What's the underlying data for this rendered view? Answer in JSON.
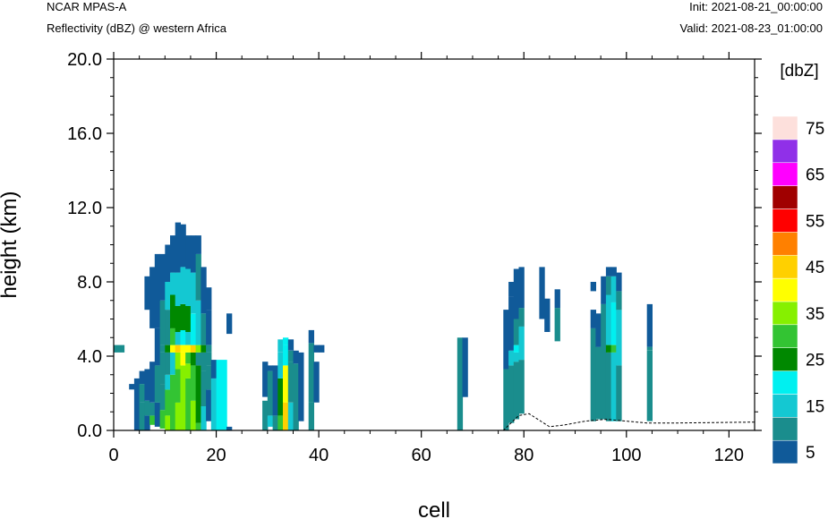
{
  "header": {
    "left_line1": "NCAR MPAS-A",
    "left_line2": "Reflectivity (dBZ) @ western Africa",
    "right_line1": "Init: 2021-08-21_00:00:00",
    "right_line2": "Valid: 2021-08-23_01:00:00"
  },
  "chart_data": {
    "type": "heatmap",
    "title": "Reflectivity (dBZ) @ western Africa",
    "xlabel": "cell",
    "ylabel": "height (km)",
    "xlim": [
      0,
      125
    ],
    "ylim": [
      0,
      20
    ],
    "x_ticks": [
      "0",
      "20",
      "40",
      "60",
      "80",
      "100",
      "120"
    ],
    "y_ticks": [
      "0.0",
      "4.0",
      "8.0",
      "12.0",
      "16.0",
      "20.0"
    ],
    "grid": false,
    "colorbar": {
      "title": "[dbZ]",
      "labels": [
        "5",
        "15",
        "25",
        "35",
        "45",
        "55",
        "65",
        "75"
      ],
      "levels": [
        5,
        10,
        15,
        20,
        25,
        30,
        35,
        40,
        45,
        50,
        55,
        60,
        65,
        70,
        75
      ],
      "colors": [
        "#105a99",
        "#1a8d8d",
        "#14c8d2",
        "#00f0f0",
        "#008800",
        "#33c433",
        "#86f000",
        "#ffff00",
        "#ffd000",
        "#ff8000",
        "#ff0000",
        "#a00000",
        "#ff00ff",
        "#9030e8",
        "#fde0dc"
      ]
    },
    "columns": [
      {
        "x": [
          0,
          2
        ],
        "segments": [
          [
            4.2,
            4.6,
            10
          ]
        ]
      },
      {
        "x": [
          3,
          4
        ],
        "segments": [
          [
            2.2,
            2.5,
            5
          ]
        ]
      },
      {
        "x": [
          4,
          5
        ],
        "segments": [
          [
            0,
            2.8,
            5
          ]
        ]
      },
      {
        "x": [
          5,
          6
        ],
        "segments": [
          [
            0,
            1.5,
            10
          ],
          [
            1.5,
            2.5,
            10
          ],
          [
            2.5,
            3.2,
            5
          ]
        ]
      },
      {
        "x": [
          6,
          7
        ],
        "segments": [
          [
            0,
            0.8,
            5
          ],
          [
            0.8,
            1.6,
            10
          ],
          [
            1.6,
            3.3,
            5
          ],
          [
            6.5,
            8.3,
            5
          ]
        ]
      },
      {
        "x": [
          7,
          8
        ],
        "segments": [
          [
            0.3,
            0.8,
            30
          ],
          [
            0.8,
            1.5,
            10
          ],
          [
            1.5,
            3.7,
            5
          ],
          [
            5.5,
            8.8,
            5
          ]
        ]
      },
      {
        "x": [
          8,
          9
        ],
        "segments": [
          [
            0.2,
            1.5,
            5
          ],
          [
            1.5,
            3.5,
            10
          ],
          [
            3.5,
            5.5,
            5
          ],
          [
            5.5,
            9.5,
            5
          ]
        ]
      },
      {
        "x": [
          9,
          10
        ],
        "segments": [
          [
            0.1,
            1.1,
            30
          ],
          [
            1.1,
            2.5,
            10
          ],
          [
            2.5,
            4.2,
            10
          ],
          [
            4.2,
            4.6,
            10
          ],
          [
            4.6,
            7,
            10
          ],
          [
            7,
            9.5,
            5
          ]
        ]
      },
      {
        "x": [
          10,
          11
        ],
        "segments": [
          [
            0,
            0.8,
            35
          ],
          [
            0.8,
            2.2,
            30
          ],
          [
            2.2,
            3,
            15
          ],
          [
            3,
            4.2,
            10
          ],
          [
            4.2,
            4.6,
            25
          ],
          [
            4.6,
            6.5,
            10
          ],
          [
            6.5,
            8,
            15
          ],
          [
            8,
            10,
            5
          ]
        ]
      },
      {
        "x": [
          11,
          12
        ],
        "segments": [
          [
            0,
            3,
            30
          ],
          [
            3,
            4.2,
            15
          ],
          [
            4.2,
            4.6,
            40
          ],
          [
            4.6,
            5.5,
            30
          ],
          [
            5.5,
            7.3,
            25
          ],
          [
            7.3,
            8.5,
            15
          ],
          [
            8.5,
            10.5,
            5
          ]
        ]
      },
      {
        "x": [
          12,
          13
        ],
        "segments": [
          [
            0,
            1.5,
            35
          ],
          [
            1.5,
            3.3,
            30
          ],
          [
            3.3,
            4.2,
            35
          ],
          [
            4.2,
            4.6,
            45
          ],
          [
            4.6,
            5.3,
            15
          ],
          [
            5.3,
            6.7,
            25
          ],
          [
            6.7,
            8.5,
            15
          ],
          [
            8.5,
            11.2,
            5
          ]
        ]
      },
      {
        "x": [
          13,
          14
        ],
        "segments": [
          [
            0,
            3.5,
            35
          ],
          [
            3.5,
            4.2,
            40
          ],
          [
            4.2,
            4.6,
            40
          ],
          [
            4.6,
            5.4,
            20
          ],
          [
            5.4,
            6.8,
            25
          ],
          [
            6.8,
            8.8,
            15
          ],
          [
            8.8,
            11.1,
            5
          ]
        ]
      },
      {
        "x": [
          14,
          15
        ],
        "segments": [
          [
            0,
            2.8,
            30
          ],
          [
            2.8,
            3.6,
            35
          ],
          [
            3.6,
            4.2,
            30
          ],
          [
            4.2,
            4.6,
            40
          ],
          [
            4.6,
            5.3,
            15
          ],
          [
            5.3,
            6.7,
            25
          ],
          [
            6.7,
            8.7,
            15
          ],
          [
            8.7,
            10.5,
            5
          ]
        ]
      },
      {
        "x": [
          15,
          16
        ],
        "segments": [
          [
            0,
            1.6,
            35
          ],
          [
            1.6,
            3.5,
            30
          ],
          [
            3.5,
            4.2,
            25
          ],
          [
            4.2,
            4.6,
            45
          ],
          [
            4.6,
            6.3,
            20
          ],
          [
            6.3,
            8.5,
            15
          ],
          [
            8.5,
            10.5,
            5
          ]
        ]
      },
      {
        "x": [
          16,
          17
        ],
        "segments": [
          [
            0,
            0.4,
            30
          ],
          [
            0.4,
            3.5,
            25
          ],
          [
            3.5,
            4.2,
            10
          ],
          [
            4.2,
            4.6,
            35
          ],
          [
            4.6,
            7,
            15
          ],
          [
            7,
            9.5,
            10
          ],
          [
            9.5,
            10.5,
            5
          ]
        ]
      },
      {
        "x": [
          17,
          18
        ],
        "segments": [
          [
            0,
            1.3,
            15
          ],
          [
            1.3,
            3.2,
            10
          ],
          [
            3.2,
            4.2,
            10
          ],
          [
            4.2,
            4.6,
            25
          ],
          [
            4.6,
            6.3,
            10
          ],
          [
            6.3,
            8,
            5
          ],
          [
            8,
            8.8,
            5
          ]
        ]
      },
      {
        "x": [
          18,
          19
        ],
        "segments": [
          [
            0.5,
            2.2,
            5
          ],
          [
            2.2,
            3.5,
            10
          ],
          [
            3.5,
            4.2,
            10
          ],
          [
            4.2,
            4.6,
            10
          ],
          [
            4.6,
            6.5,
            5
          ],
          [
            6.5,
            7.7,
            5
          ]
        ]
      },
      {
        "x": [
          19,
          20
        ],
        "segments": [
          [
            0,
            2.8,
            15
          ],
          [
            2.8,
            3.8,
            5
          ]
        ]
      },
      {
        "x": [
          20,
          22
        ],
        "segments": [
          [
            0,
            3.8,
            20
          ]
        ]
      },
      {
        "x": [
          22,
          23
        ],
        "segments": [
          [
            5.2,
            6.3,
            5
          ],
          [
            0,
            0.2,
            5
          ]
        ]
      },
      {
        "x": [
          29,
          30
        ],
        "segments": [
          [
            1.8,
            3.7,
            5
          ],
          [
            0,
            1.6,
            10
          ]
        ]
      },
      {
        "x": [
          30,
          31
        ],
        "segments": [
          [
            0.2,
            0.8,
            15
          ],
          [
            0.8,
            3.2,
            10
          ],
          [
            3.2,
            3.5,
            5
          ]
        ]
      },
      {
        "x": [
          31,
          32
        ],
        "segments": [
          [
            0,
            0.8,
            10
          ],
          [
            0.8,
            2,
            5
          ],
          [
            2,
            3.5,
            5
          ]
        ]
      },
      {
        "x": [
          32,
          33
        ],
        "segments": [
          [
            0,
            0.8,
            30
          ],
          [
            0.8,
            2.8,
            25
          ],
          [
            2.8,
            4.2,
            15
          ],
          [
            4.2,
            4.9,
            15
          ]
        ]
      },
      {
        "x": [
          33,
          34
        ],
        "segments": [
          [
            0,
            1.5,
            45
          ],
          [
            1.5,
            3.5,
            40
          ],
          [
            3.5,
            4.6,
            20
          ],
          [
            4.6,
            5,
            20
          ]
        ]
      },
      {
        "x": [
          34,
          35
        ],
        "segments": [
          [
            0,
            1.5,
            15
          ],
          [
            1.5,
            3.7,
            10
          ],
          [
            3.7,
            4.3,
            10
          ],
          [
            4.3,
            4.9,
            5
          ]
        ]
      },
      {
        "x": [
          35,
          36
        ],
        "segments": [
          [
            0,
            3.6,
            10
          ],
          [
            3.6,
            4.3,
            5
          ]
        ]
      },
      {
        "x": [
          36,
          37
        ],
        "segments": [
          [
            0.5,
            4.2,
            5
          ]
        ]
      },
      {
        "x": [
          38,
          39
        ],
        "segments": [
          [
            0,
            1.5,
            10
          ],
          [
            1.5,
            4.7,
            10
          ],
          [
            4.7,
            5.4,
            5
          ]
        ]
      },
      {
        "x": [
          39,
          40
        ],
        "segments": [
          [
            4.2,
            4.6,
            5
          ],
          [
            1.5,
            3.7,
            5
          ]
        ]
      },
      {
        "x": [
          40,
          41
        ],
        "segments": [
          [
            4.2,
            4.6,
            5
          ]
        ]
      },
      {
        "x": [
          67,
          68
        ],
        "segments": [
          [
            0,
            5,
            10
          ]
        ]
      },
      {
        "x": [
          68,
          69
        ],
        "segments": [
          [
            1.8,
            5,
            5
          ]
        ]
      },
      {
        "x": [
          76,
          77
        ],
        "segments": [
          [
            0,
            3.3,
            10
          ],
          [
            3.3,
            6.5,
            5
          ]
        ]
      },
      {
        "x": [
          77,
          78
        ],
        "segments": [
          [
            0.4,
            3.5,
            10
          ],
          [
            3.5,
            4.3,
            15
          ],
          [
            4.3,
            7.2,
            5
          ],
          [
            7.2,
            8,
            5
          ]
        ]
      },
      {
        "x": [
          78,
          79
        ],
        "segments": [
          [
            0.6,
            3.7,
            10
          ],
          [
            3.7,
            4.2,
            15
          ],
          [
            4.2,
            4.6,
            20
          ],
          [
            4.6,
            6,
            10
          ],
          [
            6,
            8.7,
            5
          ]
        ]
      },
      {
        "x": [
          79,
          80
        ],
        "segments": [
          [
            0.9,
            3.8,
            10
          ],
          [
            3.8,
            5.6,
            15
          ],
          [
            5.6,
            6.6,
            10
          ],
          [
            6.6,
            8.8,
            5
          ]
        ]
      },
      {
        "x": [
          83,
          84
        ],
        "segments": [
          [
            6,
            8.8,
            5
          ]
        ]
      },
      {
        "x": [
          84,
          85
        ],
        "segments": [
          [
            5.3,
            7.1,
            5
          ]
        ]
      },
      {
        "x": [
          86,
          87
        ],
        "segments": [
          [
            4.8,
            6.6,
            10
          ],
          [
            6.6,
            7.6,
            5
          ]
        ]
      },
      {
        "x": [
          93,
          94
        ],
        "segments": [
          [
            0.5,
            5.5,
            10
          ],
          [
            5.5,
            6.5,
            5
          ],
          [
            7.5,
            8,
            5
          ]
        ]
      },
      {
        "x": [
          94,
          95
        ],
        "segments": [
          [
            0.6,
            4.5,
            10
          ],
          [
            4.5,
            6.3,
            5
          ]
        ]
      },
      {
        "x": [
          95,
          96
        ],
        "segments": [
          [
            0.6,
            5.4,
            10
          ],
          [
            5.4,
            6.8,
            10
          ],
          [
            6.8,
            8.3,
            5
          ]
        ]
      },
      {
        "x": [
          96,
          97
        ],
        "segments": [
          [
            0.5,
            4.2,
            10
          ],
          [
            4.2,
            4.6,
            25
          ],
          [
            4.6,
            7.3,
            15
          ],
          [
            7.3,
            8.3,
            10
          ],
          [
            8.3,
            8.8,
            5
          ]
        ]
      },
      {
        "x": [
          97,
          98
        ],
        "segments": [
          [
            0.5,
            4.2,
            15
          ],
          [
            4.2,
            4.6,
            30
          ],
          [
            4.6,
            6.9,
            20
          ],
          [
            6.9,
            8.3,
            15
          ],
          [
            8.3,
            8.8,
            5
          ]
        ]
      },
      {
        "x": [
          98,
          99
        ],
        "segments": [
          [
            0.5,
            3.5,
            10
          ],
          [
            3.5,
            6.5,
            15
          ],
          [
            6.5,
            7.5,
            10
          ],
          [
            7.5,
            8.5,
            5
          ]
        ]
      },
      {
        "x": [
          104,
          105
        ],
        "segments": [
          [
            0.5,
            2,
            10
          ],
          [
            2,
            4.3,
            10
          ],
          [
            4.3,
            4.5,
            10
          ],
          [
            4.5,
            6.8,
            5
          ]
        ]
      }
    ],
    "terrain": [
      [
        0,
        0
      ],
      [
        76,
        0
      ],
      [
        79,
        0.8
      ],
      [
        81,
        0.9
      ],
      [
        85,
        0.2
      ],
      [
        88,
        0.3
      ],
      [
        92,
        0.5
      ],
      [
        96,
        0.6
      ],
      [
        104,
        0.4
      ],
      [
        110,
        0.4
      ],
      [
        125,
        0.45
      ]
    ]
  }
}
